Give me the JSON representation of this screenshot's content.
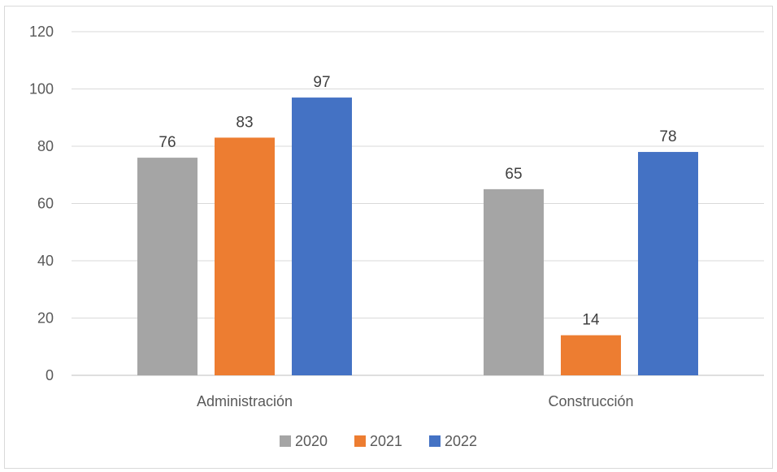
{
  "chart_data": {
    "type": "bar",
    "title": "",
    "xlabel": "",
    "ylabel": "",
    "categories": [
      "Administración",
      "Construcción"
    ],
    "series": [
      {
        "name": "2020",
        "values": [
          76,
          65
        ],
        "color": "#a5a5a5"
      },
      {
        "name": "2021",
        "values": [
          83,
          14
        ],
        "color": "#ed7d31"
      },
      {
        "name": "2022",
        "values": [
          97,
          78
        ],
        "color": "#4472c4"
      }
    ],
    "ylim": [
      0,
      120
    ],
    "yticks": [
      0,
      20,
      40,
      60,
      80,
      100,
      120
    ],
    "grid": true,
    "legend": "bottom",
    "gridline_color": "#d9d9d9",
    "axis_line_color": "#bfbfbf"
  }
}
